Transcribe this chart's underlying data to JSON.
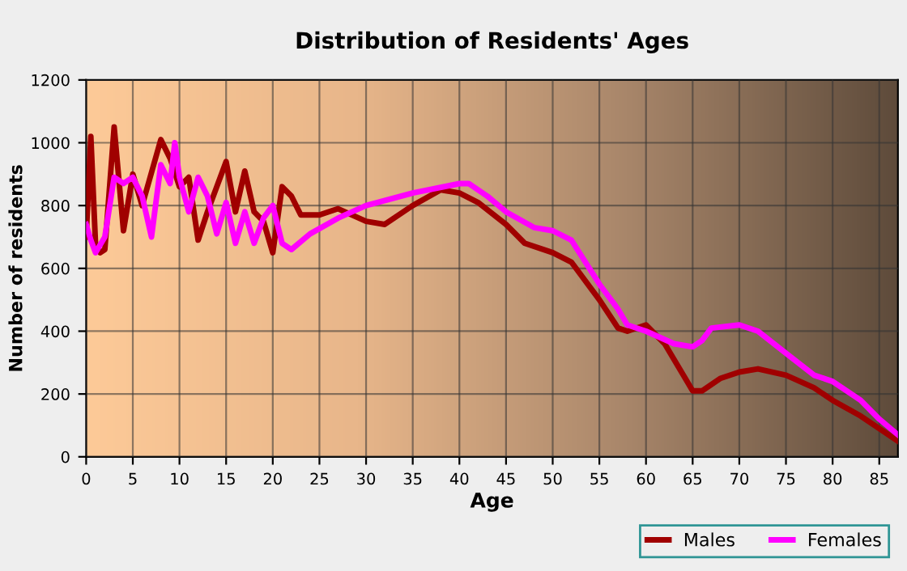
{
  "chart_data": {
    "type": "line",
    "title": "Distribution of Residents' Ages",
    "xlabel": "Age",
    "ylabel": "Number of residents",
    "xlim": [
      0,
      87
    ],
    "xticks": [
      0,
      5,
      10,
      15,
      20,
      25,
      30,
      35,
      40,
      45,
      50,
      55,
      60,
      65,
      70,
      75,
      80,
      85
    ],
    "ylim": [
      0,
      1200
    ],
    "yticks": [
      0,
      200,
      400,
      600,
      800,
      1000,
      1200
    ],
    "grid": true,
    "legend": "bottom right",
    "marker": "none",
    "line_style": "solid",
    "series": [
      {
        "name": "Males",
        "color": "#a00000",
        "x": [
          0,
          0.5,
          1,
          1.5,
          2,
          3,
          4,
          5,
          6,
          8,
          9,
          10,
          11,
          12,
          13,
          15,
          16,
          17,
          18,
          19,
          20,
          21,
          22,
          23,
          25,
          27,
          30,
          32,
          35,
          38,
          40,
          42,
          45,
          47,
          50,
          52,
          55,
          57,
          58,
          60,
          62,
          64,
          65,
          66,
          68,
          70,
          72,
          75,
          78,
          80,
          83,
          85,
          87
        ],
        "values": [
          700,
          1020,
          680,
          650,
          660,
          1050,
          720,
          900,
          800,
          1010,
          950,
          860,
          890,
          690,
          780,
          940,
          780,
          910,
          780,
          750,
          650,
          860,
          830,
          770,
          770,
          790,
          750,
          740,
          800,
          850,
          840,
          810,
          740,
          680,
          650,
          620,
          500,
          410,
          400,
          420,
          360,
          260,
          210,
          210,
          250,
          270,
          280,
          260,
          220,
          180,
          130,
          90,
          50
        ]
      },
      {
        "name": "Females",
        "color": "#ff00ff",
        "x": [
          0,
          0.5,
          1,
          2,
          3,
          4,
          5,
          6,
          7,
          8,
          9,
          9.5,
          10,
          11,
          12,
          13,
          14,
          15,
          16,
          17,
          18,
          19,
          20,
          21,
          22,
          24,
          27,
          30,
          35,
          40,
          41,
          43,
          45,
          48,
          50,
          52,
          55,
          57,
          58,
          60,
          63,
          65,
          66,
          67,
          70,
          72,
          75,
          78,
          80,
          83,
          85,
          87
        ],
        "values": [
          740,
          690,
          650,
          700,
          890,
          870,
          890,
          830,
          700,
          930,
          870,
          1000,
          890,
          780,
          890,
          830,
          710,
          810,
          680,
          780,
          680,
          760,
          800,
          680,
          660,
          710,
          760,
          800,
          840,
          870,
          870,
          830,
          780,
          730,
          720,
          690,
          550,
          470,
          420,
          400,
          360,
          350,
          370,
          410,
          420,
          400,
          330,
          260,
          240,
          180,
          120,
          70
        ]
      }
    ]
  }
}
